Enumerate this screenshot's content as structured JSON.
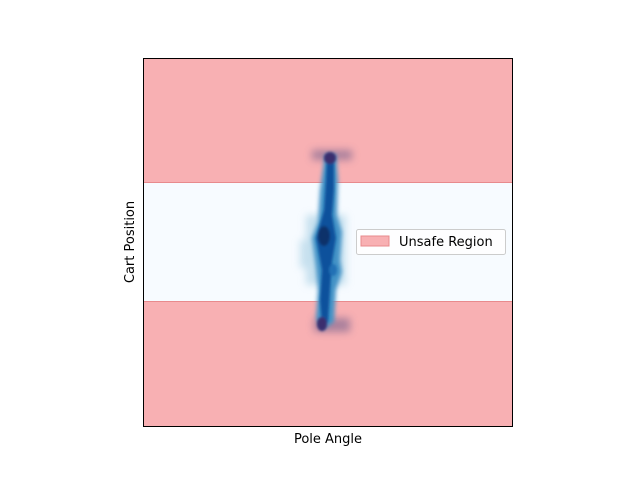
{
  "chart_data": {
    "type": "heatmap",
    "title": "",
    "xlabel": "Pole Angle",
    "ylabel": "Cart Position",
    "xticks_visible": false,
    "yticks_visible": false,
    "grid": false,
    "legend": {
      "placement": "center-right",
      "entries": [
        "Unsafe Region"
      ]
    },
    "unsafe_region": {
      "label": "Unsafe Region",
      "color": "#f8b0b3",
      "edge_color": "#e88a8d"
    },
    "safe_band_color": "#f7fbff",
    "density_colormap": [
      "#f7fbff",
      "#6baed6",
      "#2171b5",
      "#08306b"
    ],
    "density_peak_color": "#3b2d6e"
  }
}
